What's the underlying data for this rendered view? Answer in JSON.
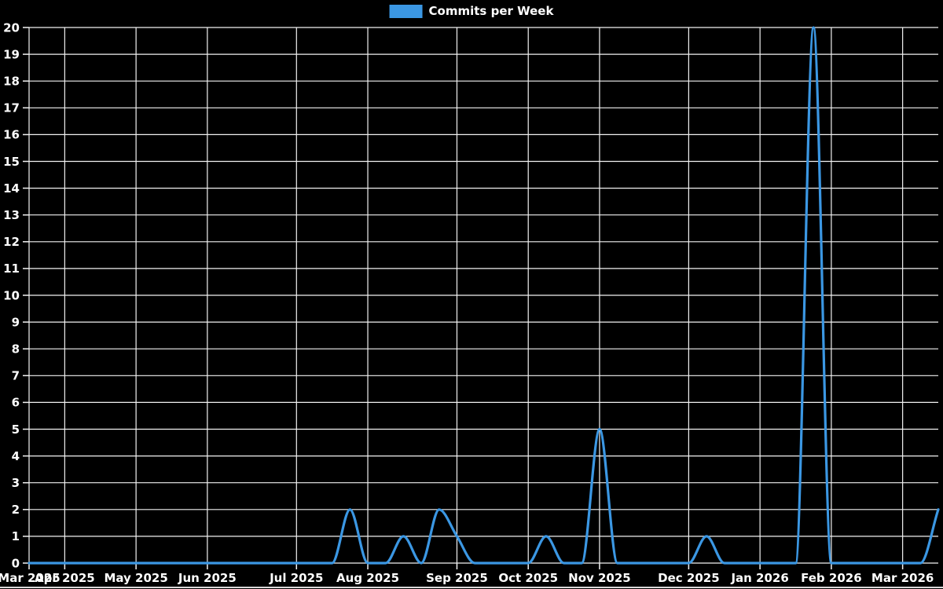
{
  "legend": {
    "label": "Commits per Week"
  },
  "colors": {
    "background": "#000000",
    "line": "#3b97e3",
    "grid": "#f2f2f2",
    "text": "#ffffff"
  },
  "chart_data": {
    "type": "line",
    "title": "Commits per Week",
    "xlabel": "",
    "ylabel": "",
    "grid": true,
    "legend_position": "top-center",
    "ylim": [
      0,
      20
    ],
    "y_tick_step": 1,
    "y_tick_labels": [
      "0",
      "1",
      "2",
      "3",
      "4",
      "5",
      "6",
      "7",
      "8",
      "9",
      "10",
      "11",
      "12",
      "13",
      "14",
      "15",
      "16",
      "17",
      "18",
      "19",
      "20"
    ],
    "weeks_total": 52,
    "x_tick_labels": [
      {
        "week": 0,
        "label": "Mar 2025"
      },
      {
        "week": 2,
        "label": "Apr 2025"
      },
      {
        "week": 6,
        "label": "May 2025"
      },
      {
        "week": 10,
        "label": "Jun 2025"
      },
      {
        "week": 15,
        "label": "Jul 2025"
      },
      {
        "week": 19,
        "label": "Aug 2025"
      },
      {
        "week": 24,
        "label": "Sep 2025"
      },
      {
        "week": 28,
        "label": "Oct 2025"
      },
      {
        "week": 32,
        "label": "Nov 2025"
      },
      {
        "week": 37,
        "label": "Dec 2025"
      },
      {
        "week": 41,
        "label": "Jan 2026"
      },
      {
        "week": 45,
        "label": "Feb 2026"
      },
      {
        "week": 49,
        "label": "Mar 2026"
      }
    ],
    "series": [
      {
        "name": "Commits per Week",
        "values": [
          0,
          0,
          0,
          0,
          0,
          0,
          0,
          0,
          0,
          0,
          0,
          0,
          0,
          0,
          0,
          0,
          0,
          0,
          2,
          0,
          0,
          1,
          0,
          2,
          1,
          0,
          0,
          0,
          0,
          1,
          0,
          0,
          5,
          0,
          0,
          0,
          0,
          0,
          1,
          0,
          0,
          0,
          0,
          0,
          20,
          0,
          0,
          0,
          0,
          0,
          0,
          2
        ]
      }
    ]
  }
}
